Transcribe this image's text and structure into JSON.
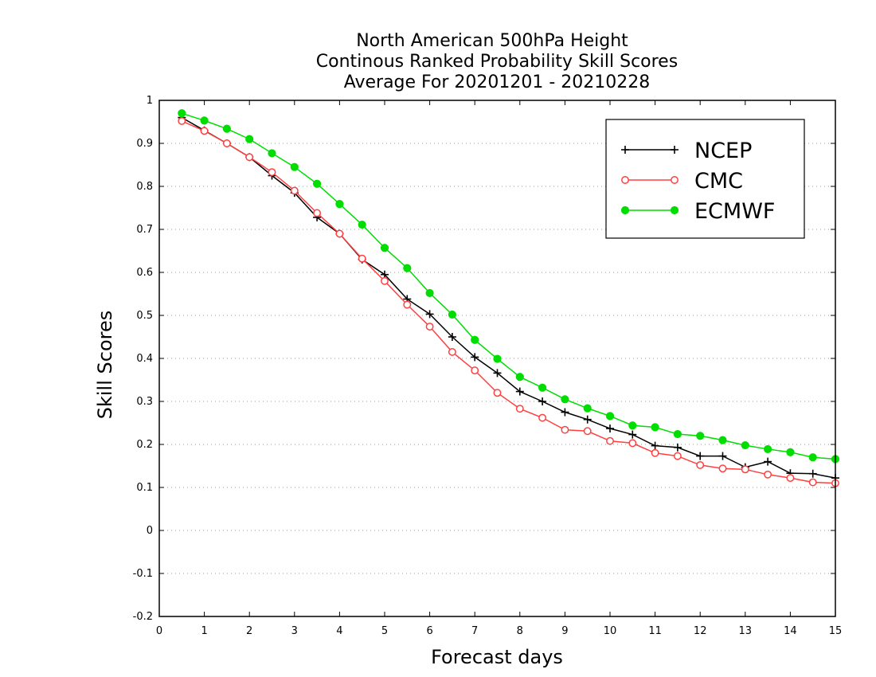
{
  "chart_data": {
    "type": "line",
    "title": [
      "North American 500hPa Height",
      "Continous Ranked Probability Skill Scores",
      "Average For 20201201 - 20210228"
    ],
    "xlabel": "Forecast days",
    "ylabel": "Skill Scores",
    "xlim": [
      0,
      15
    ],
    "ylim": [
      -0.2,
      1
    ],
    "xticks": [
      0,
      1,
      2,
      3,
      4,
      5,
      6,
      7,
      8,
      9,
      10,
      11,
      12,
      13,
      14,
      15
    ],
    "yticks": [
      -0.2,
      -0.1,
      0,
      0.1,
      0.2,
      0.3,
      0.4,
      0.5,
      0.6,
      0.7,
      0.8,
      0.9,
      1
    ],
    "ytick_labels": [
      "-0.2",
      "-0.1",
      "0",
      "0.1",
      "0.2",
      "0.3",
      "0.4",
      "0.5",
      "0.6",
      "0.7",
      "0.8",
      "0.9",
      "1"
    ],
    "grid": "horizontal dotted",
    "legend_position": "top-right",
    "x": [
      0.5,
      1,
      1.5,
      2,
      2.5,
      3,
      3.5,
      4,
      4.5,
      5,
      5.5,
      6,
      6.5,
      7,
      7.5,
      8,
      8.5,
      9,
      9.5,
      10,
      10.5,
      11,
      11.5,
      12,
      12.5,
      13,
      13.5,
      14,
      14.5,
      15
    ],
    "series": [
      {
        "name": "NCEP",
        "color": "#000000",
        "marker": "plus",
        "values": [
          0.96,
          0.93,
          0.9,
          0.868,
          0.825,
          0.785,
          0.728,
          0.69,
          0.63,
          0.595,
          0.538,
          0.503,
          0.45,
          0.403,
          0.366,
          0.323,
          0.3,
          0.275,
          0.258,
          0.237,
          0.223,
          0.197,
          0.193,
          0.173,
          0.173,
          0.147,
          0.16,
          0.133,
          0.132,
          0.122
        ]
      },
      {
        "name": "CMC",
        "color": "#ff4040",
        "marker": "open-circle",
        "values": [
          0.952,
          0.929,
          0.9,
          0.868,
          0.833,
          0.79,
          0.738,
          0.69,
          0.632,
          0.58,
          0.525,
          0.474,
          0.415,
          0.372,
          0.32,
          0.283,
          0.262,
          0.234,
          0.231,
          0.208,
          0.203,
          0.18,
          0.173,
          0.152,
          0.144,
          0.142,
          0.13,
          0.122,
          0.112,
          0.11
        ]
      },
      {
        "name": "ECMWF",
        "color": "#00dd00",
        "marker": "filled-circle",
        "values": [
          0.97,
          0.953,
          0.934,
          0.91,
          0.877,
          0.845,
          0.806,
          0.759,
          0.711,
          0.657,
          0.61,
          0.552,
          0.502,
          0.443,
          0.399,
          0.357,
          0.332,
          0.305,
          0.284,
          0.266,
          0.244,
          0.24,
          0.224,
          0.22,
          0.21,
          0.198,
          0.189,
          0.182,
          0.17,
          0.166
        ]
      }
    ]
  }
}
